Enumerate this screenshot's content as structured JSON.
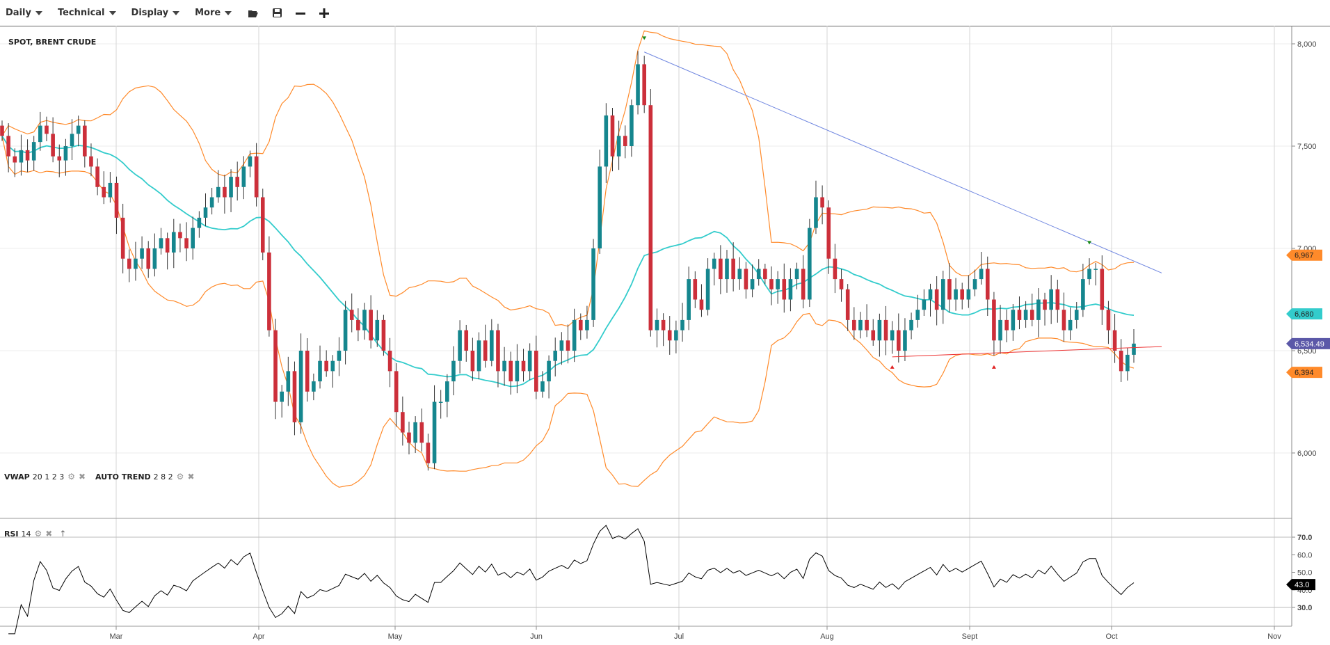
{
  "toolbar": {
    "menus": [
      {
        "label": "Daily"
      },
      {
        "label": "Technical"
      },
      {
        "label": "Display"
      },
      {
        "label": "More"
      }
    ],
    "icons": [
      "folder-open-icon",
      "save-icon",
      "zoom-out-icon",
      "zoom-in-icon"
    ]
  },
  "chart_title": "SPOT, BRENT CRUDE",
  "indicators": {
    "vwap": {
      "name": "VWAP",
      "params": "20 1 2 3"
    },
    "auto_trend": {
      "name": "AUTO TREND",
      "params": "2 8 2"
    },
    "rsi": {
      "name": "RSI",
      "params": "14"
    }
  },
  "colors": {
    "up": "#15868e",
    "down": "#cc2f3a",
    "bands": "#ff8a2a",
    "vwap": "#33cccc",
    "trend_resistance": "#6f86e0",
    "trend_support": "#ee3333",
    "last_price": "#5b58a8",
    "rsi": "#000000"
  },
  "chart_data": {
    "type": "candlestick",
    "y_ticks": [
      "8,000",
      "7,500",
      "7,000",
      "6,500",
      "6,000"
    ],
    "y_tick_values": [
      8000,
      7500,
      7000,
      6500,
      6000
    ],
    "x_ticks": [
      "Mar",
      "Apr",
      "May",
      "Jun",
      "Jul",
      "Aug",
      "Sept",
      "Oct",
      "Nov"
    ],
    "rsi_ticks": [
      "70.0",
      "60.0",
      "50.0",
      "40.0",
      "30.0"
    ],
    "rsi_tick_values": [
      70,
      60,
      50,
      40,
      30
    ],
    "closes": [
      7550,
      7450,
      7420,
      7480,
      7430,
      7520,
      7600,
      7560,
      7450,
      7430,
      7500,
      7560,
      7600,
      7450,
      7400,
      7300,
      7250,
      7320,
      7150,
      6950,
      6900,
      6950,
      7000,
      6900,
      7000,
      7050,
      6980,
      7080,
      7050,
      7000,
      7100,
      7150,
      7200,
      7250,
      7300,
      7250,
      7350,
      7300,
      7400,
      7450,
      7250,
      6980,
      6600,
      6250,
      6300,
      6400,
      6150,
      6500,
      6300,
      6350,
      6450,
      6400,
      6450,
      6500,
      6700,
      6650,
      6600,
      6700,
      6550,
      6650,
      6500,
      6400,
      6200,
      6100,
      6050,
      6150,
      6050,
      5950,
      6250,
      6250,
      6350,
      6450,
      6600,
      6500,
      6400,
      6550,
      6450,
      6600,
      6400,
      6450,
      6350,
      6450,
      6400,
      6500,
      6300,
      6350,
      6450,
      6500,
      6550,
      6500,
      6650,
      6600,
      6650,
      7000,
      7400,
      7650,
      7450,
      7550,
      7500,
      7700,
      7900,
      7700,
      6600,
      6650,
      6600,
      6550,
      6600,
      6650,
      6850,
      6750,
      6700,
      6900,
      6950,
      6850,
      6950,
      6850,
      6900,
      6800,
      6850,
      6900,
      6850,
      6800,
      6850,
      6750,
      6850,
      6900,
      6750,
      7100,
      7250,
      7200,
      6950,
      6850,
      6800,
      6650,
      6600,
      6650,
      6600,
      6550,
      6650,
      6550,
      6600,
      6500,
      6600,
      6650,
      6700,
      6750,
      6800,
      6700,
      6850,
      6750,
      6800,
      6750,
      6800,
      6850,
      6900,
      6750,
      6550,
      6650,
      6600,
      6700,
      6650,
      6700,
      6650,
      6750,
      6700,
      6800,
      6700,
      6600,
      6650,
      6700,
      6850,
      6900,
      6900,
      6700,
      6600,
      6500,
      6400,
      6480,
      6534.49
    ],
    "month_starts": {
      "Mar": 17,
      "Apr": 39,
      "May": 63,
      "Jun": 85,
      "Jul": 107,
      "Aug": 130,
      "Sept": 153,
      "Oct": 175
    },
    "vwap_period": 20,
    "trendlines": [
      {
        "kind": "resistance",
        "from": {
          "index": 101,
          "value": 7960
        },
        "to": {
          "index": 178,
          "value": 6880
        }
      },
      {
        "kind": "support",
        "from": {
          "index": 140,
          "value": 6470
        },
        "to": {
          "index": 178,
          "value": 6520
        }
      }
    ],
    "markers": [
      {
        "type": "peak",
        "index": 101
      },
      {
        "type": "peak",
        "index": 171
      },
      {
        "type": "trough",
        "index": 140
      },
      {
        "type": "trough",
        "index": 156
      }
    ],
    "price_labels": [
      {
        "text": "6,967",
        "value": 6967,
        "color": "#ff8a2a"
      },
      {
        "text": "6,680",
        "value": 6680,
        "color": "#33cccc"
      },
      {
        "text": "6,534.49",
        "value": 6534.49,
        "color": "#5b58a8"
      },
      {
        "text": "6,394",
        "value": 6394,
        "color": "#ff8a2a"
      }
    ],
    "rsi_last": {
      "text": "43.0",
      "value": 43.0
    }
  }
}
